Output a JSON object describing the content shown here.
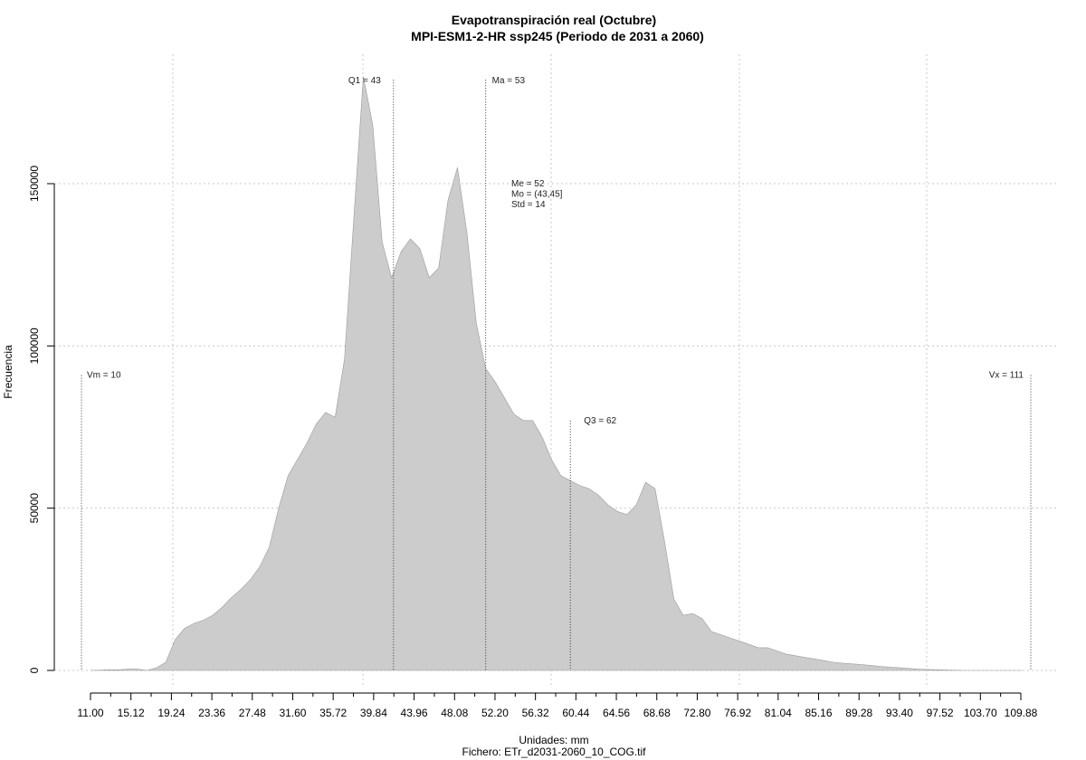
{
  "chart_data": {
    "type": "area",
    "title": "Evapotranspiración real (Octubre)",
    "subtitle": "MPI-ESM1-2-HR ssp245 (Periodo de 2031 a 2060)",
    "xlabel": "Unidades: mm",
    "ylabel": "Frecuencia",
    "caption": "Fichero: ETr_d2031-2060_10_COG.tif",
    "xlim": [
      11.0,
      109.88
    ],
    "ylim": [
      0,
      150000
    ],
    "x_ticks": [
      "11.00",
      "15.12",
      "19.24",
      "23.36",
      "27.48",
      "31.60",
      "35.72",
      "39.84",
      "43.96",
      "48.08",
      "52.20",
      "56.32",
      "60.44",
      "64.56",
      "68.68",
      "72.80",
      "76.92",
      "81.04",
      "85.16",
      "89.28",
      "93.40",
      "97.52",
      "103.70",
      "109.88"
    ],
    "y_ticks": [
      "0",
      "50000",
      "100000",
      "150000"
    ],
    "grid": true,
    "fill_color": "#cccccc",
    "series": [
      {
        "x": [
          11.0,
          13.0,
          14.0,
          15.0,
          16.0,
          17.0,
          18.0,
          19.0,
          20.0,
          21.0,
          22.0,
          23.0,
          24.0,
          25.0,
          26.0,
          27.0,
          28.0,
          29.0,
          30.0,
          31.0,
          32.0,
          33.0,
          34.0,
          35.0,
          36.0,
          37.0,
          38.0,
          39.0,
          40.0,
          41.0,
          42.0,
          43.0,
          44.0,
          45.0,
          46.0,
          47.0,
          48.0,
          49.0,
          50.0,
          51.0,
          52.0,
          53.0,
          54.0,
          55.0,
          56.0,
          57.0,
          58.0,
          59.0,
          60.0,
          61.0,
          62.0,
          63.0,
          64.0,
          65.0,
          66.0,
          67.0,
          68.0,
          69.0,
          70.0,
          71.0,
          72.0,
          73.0,
          74.0,
          75.0,
          76.0,
          77.0,
          78.0,
          79.0,
          80.0,
          81.0,
          82.0,
          83.0,
          84.0,
          85.0,
          86.0,
          87.0,
          88.0,
          89.0,
          90.0,
          91.0,
          92.0,
          93.0,
          94.0,
          95.0,
          96.0,
          97.0,
          98.0,
          99.0,
          100.0,
          101.0,
          102.0,
          103.0,
          104.0,
          105.0,
          106.0,
          107.0,
          108.0,
          109.0,
          110.0
        ],
        "y": [
          0,
          200,
          200,
          400,
          400,
          0,
          800,
          2500,
          9500,
          13000,
          14500,
          15500,
          17000,
          19500,
          22500,
          25000,
          28000,
          32000,
          38000,
          50000,
          60000,
          65000,
          70000,
          76000,
          79500,
          78000,
          96000,
          140000,
          183000,
          168000,
          132000,
          121000,
          129000,
          133000,
          130000,
          121000,
          124000,
          145000,
          155000,
          135000,
          107000,
          93000,
          89000,
          84000,
          79000,
          77000,
          77000,
          72000,
          65000,
          60000,
          58500,
          57000,
          56000,
          54000,
          51000,
          49000,
          48000,
          51000,
          58000,
          56000,
          40000,
          22000,
          17000,
          17500,
          16000,
          12000,
          11000,
          10000,
          9000,
          8000,
          7000,
          7000,
          6000,
          5000,
          4500,
          4000,
          3500,
          3000,
          2500,
          2200,
          2000,
          1800,
          1500,
          1200,
          1000,
          800,
          600,
          400,
          300,
          200,
          100,
          50,
          0,
          0,
          0,
          0,
          0,
          0,
          0
        ],
        "name": ""
      }
    ],
    "annotations": [
      {
        "label": "Q1 = 43",
        "x": 43.2,
        "y_top": 182000
      },
      {
        "label": "Ma = 53",
        "x": 53.0,
        "y_top": 182000
      },
      {
        "label": "Q3 = 62",
        "x": 62.0,
        "y_top": 77000
      },
      {
        "label": "Vm = 10",
        "x": 10.0,
        "y_top": 91000
      },
      {
        "label": "Vx = 111",
        "x": 111.0,
        "y_top": 91000
      }
    ],
    "stats_block": [
      "Me = 52",
      "Mo = (43,45]",
      "Std = 14"
    ]
  }
}
